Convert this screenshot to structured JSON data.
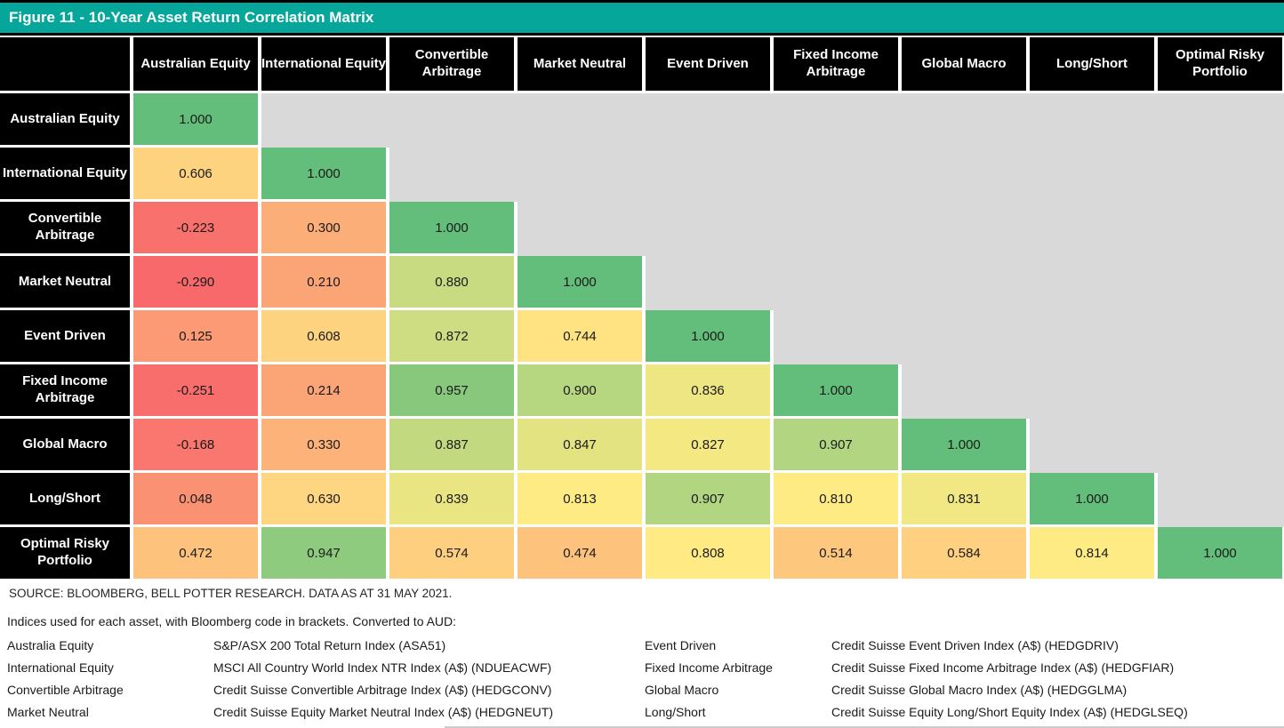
{
  "figure": {
    "title": "Figure 11 - 10-Year Asset Return Correlation Matrix"
  },
  "chart_data": {
    "type": "heatmap",
    "title": "Figure 11 - 10-Year Asset Return Correlation Matrix",
    "columns": [
      "Australian Equity",
      "International Equity",
      "Convertible Arbitrage",
      "Market Neutral",
      "Event Driven",
      "Fixed Income Arbitrage",
      "Global Macro",
      "Long/Short",
      "Optimal Risky Portfolio"
    ],
    "rows": [
      {
        "label": "Australian Equity",
        "values": [
          "1.000"
        ]
      },
      {
        "label": "International Equity",
        "values": [
          "0.606",
          "1.000"
        ]
      },
      {
        "label": "Convertible Arbitrage",
        "values": [
          "-0.223",
          "0.300",
          "1.000"
        ]
      },
      {
        "label": "Market Neutral",
        "values": [
          "-0.290",
          "0.210",
          "0.880",
          "1.000"
        ]
      },
      {
        "label": "Event Driven",
        "values": [
          "0.125",
          "0.608",
          "0.872",
          "0.744",
          "1.000"
        ]
      },
      {
        "label": "Fixed Income Arbitrage",
        "values": [
          "-0.251",
          "0.214",
          "0.957",
          "0.900",
          "0.836",
          "1.000"
        ]
      },
      {
        "label": "Global Macro",
        "values": [
          "-0.168",
          "0.330",
          "0.887",
          "0.847",
          "0.827",
          "0.907",
          "1.000"
        ]
      },
      {
        "label": "Long/Short",
        "values": [
          "0.048",
          "0.630",
          "0.839",
          "0.813",
          "0.907",
          "0.810",
          "0.831",
          "1.000"
        ]
      },
      {
        "label": "Optimal Risky Portfolio",
        "values": [
          "0.472",
          "0.947",
          "0.574",
          "0.474",
          "0.808",
          "0.514",
          "0.584",
          "0.814",
          "1.000"
        ]
      }
    ],
    "color_scale": {
      "min_value": -0.29,
      "min_color": "#F8696B",
      "mid_value": 0.814,
      "mid_color": "#FFEB84",
      "max_value": 1.0,
      "max_color": "#63BE7B"
    },
    "empty_color": "#D9D9D9",
    "legend_position": "none"
  },
  "colors": {
    "title_bar": "#06A79A",
    "header_bg": "#000000",
    "header_text": "#FFFFFF",
    "empty_cell": "#D9D9D9",
    "cell_text": "#1A1A1A"
  },
  "footer": {
    "source": "SOURCE: BLOOMBERG, BELL POTTER RESEARCH. DATA AS AT 31 MAY 2021.",
    "indices_intro": "Indices used for each asset, with Bloomberg code in brackets. Converted to AUD:",
    "indices_left": [
      {
        "asset": "Australia Equity",
        "index": "S&P/ASX 200 Total Return Index (ASA51)"
      },
      {
        "asset": "International Equity",
        "index": "MSCI All Country World Index NTR Index (A$) (NDUEACWF)"
      },
      {
        "asset": "Convertible Arbitrage",
        "index": "Credit Suisse Convertible Arbitrage Index (A$) (HEDGCONV)"
      },
      {
        "asset": "Market Neutral",
        "index": "Credit Suisse Equity Market Neutral Index (A$) (HEDGNEUT)"
      }
    ],
    "indices_right": [
      {
        "asset": "Event Driven",
        "index": "Credit Suisse Event Driven Index (A$) (HEDGDRIV)"
      },
      {
        "asset": "Fixed Income Arbitrage",
        "index": "Credit Suisse Fixed Income Arbitrage Index (A$) (HEDGFIAR)"
      },
      {
        "asset": "Global Macro",
        "index": "Credit Suisse Global Macro Index (A$) (HEDGGLMA)"
      },
      {
        "asset": "Long/Short",
        "index": "Credit Suisse Equity Long/Short Equity Index (A$) (HEDGLSEQ)"
      }
    ]
  }
}
